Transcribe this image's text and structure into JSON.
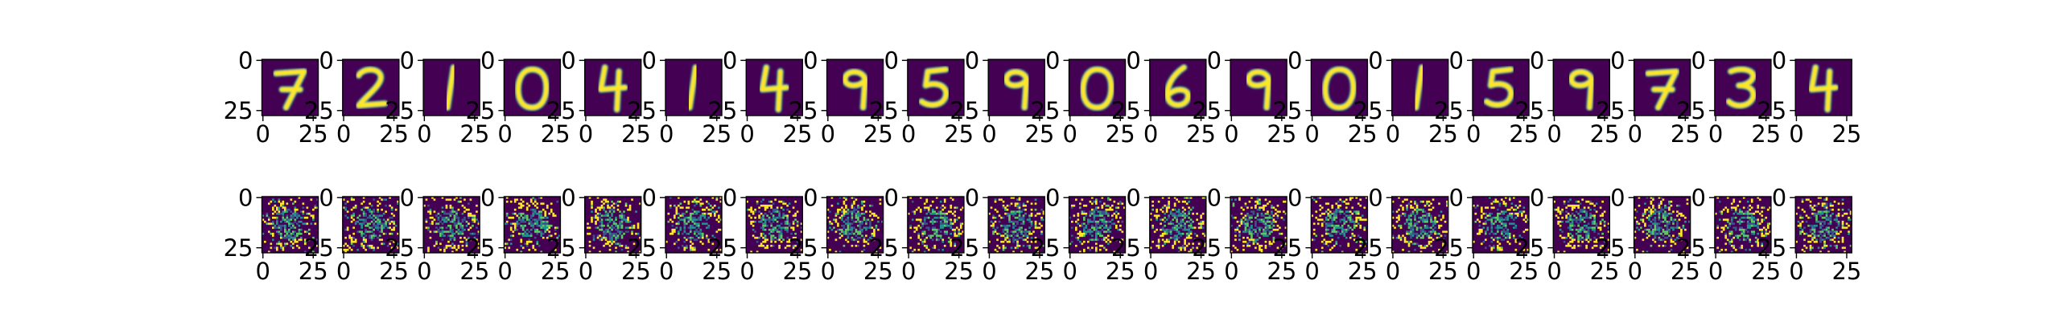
{
  "chart_data": {
    "type": "heatmap",
    "colormap": "viridis",
    "pixel_grid": [
      28,
      28
    ],
    "vmin": 0,
    "vmax": 1,
    "x_tick_labels": [
      "0",
      "25"
    ],
    "y_tick_labels": [
      "0",
      "25"
    ],
    "rows": [
      {
        "name": "",
        "digits": [
          7,
          2,
          1,
          0,
          4,
          1,
          4,
          9,
          5,
          9,
          0,
          6,
          9,
          0,
          1,
          5,
          9,
          7,
          3,
          4
        ]
      },
      {
        "name": "",
        "panel_count": 20,
        "content": "noise"
      }
    ]
  },
  "colors": {
    "background": "#440154",
    "low": "#3b528b",
    "mid": "#21918c",
    "high": "#5ec962",
    "foreground": "#fde725"
  }
}
